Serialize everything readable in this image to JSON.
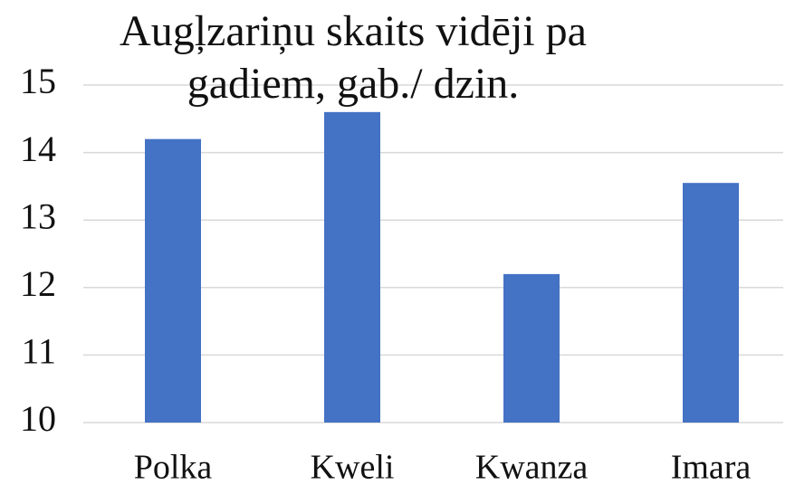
{
  "chart_data": {
    "type": "bar",
    "title": "Augļzariņu skaits vidēji pa gadiem, gab./ dzin.",
    "categories": [
      "Polka",
      "Kweli",
      "Kwanza",
      "Imara"
    ],
    "values": [
      14.2,
      14.6,
      12.2,
      13.55
    ],
    "color": "#4472c4",
    "ylim": [
      10,
      15
    ],
    "yticks": [
      10,
      11,
      12,
      13,
      14,
      15
    ],
    "grid": true
  }
}
